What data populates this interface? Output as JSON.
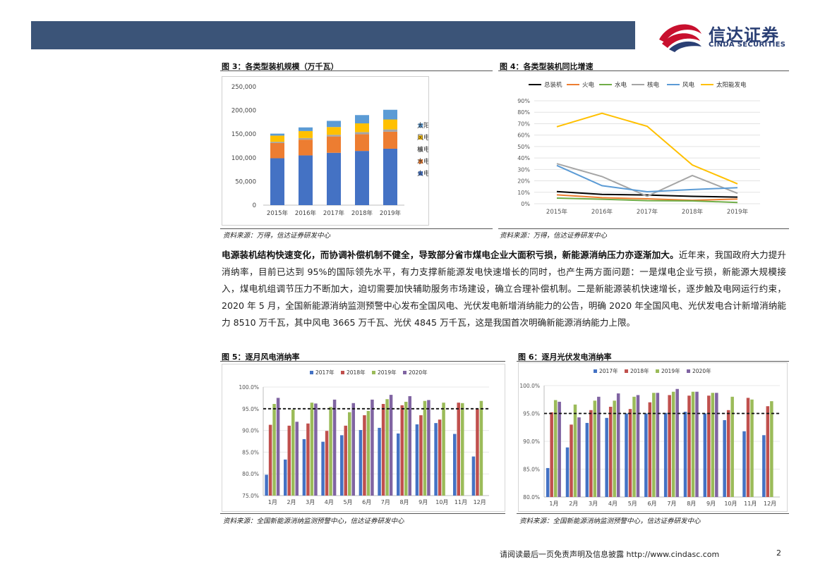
{
  "header": {
    "logo_cn": "信达证券",
    "logo_en": "CINDA SECURITIES",
    "colors": {
      "band": "#3b5478",
      "logo_red": "#c8102e",
      "logo_blue": "#2a3f74"
    }
  },
  "fig3": {
    "title": "图 3：各类型装机规模（万千瓦）",
    "source": "资料来源：万得，信达证券研发中心"
  },
  "fig4": {
    "title": "图 4：各类型装机同比增速",
    "source": "资料来源：万得，信达证券研发中心"
  },
  "fig5": {
    "title": "图 5：逐月风电消纳率",
    "source": "资料来源：全国新能源消纳监测预警中心，信达证券研发中心"
  },
  "fig6": {
    "title": "图 6：逐月光伏发电消纳率",
    "source": "资料来源：全国新能源消纳监测预警中心，信达证券研发中心"
  },
  "body": {
    "bold_lead": "电源装机结构快速变化，而协调补偿机制不健全，导致部分省市煤电企业大面积亏损，新能源消纳压力亦逐渐加大。",
    "rest": "近年来，我国政府大力提升消纳率，目前已达到 95%的国际领先水平，有力支撑新能源发电快速增长的同时，也产生两方面问题：一是煤电企业亏损，新能源大规模接入，煤电机组调节压力不断加大，迫切需要加快辅助服务市场建设，确立合理补偿机制。二是新能源装机快速增长，逐步触及电网运行约束，2020 年 5 月，全国新能源消纳监测预警中心发布全国风电、光伏发电新增消纳能力的公告，明确 2020 年全国风电、光伏发电合计新增消纳能力 8510 万千瓦，其中风电 3665 万千瓦、光伏 4845 万千瓦，这是我国首次明确新能源消纳能力上限。"
  },
  "footer": {
    "text": "请阅读最后一页免责声明及信息披露 http://www.cindasc.com",
    "page": "2"
  },
  "chart_data": [
    {
      "id": "fig3",
      "type": "bar",
      "stacked": true,
      "categories": [
        "2015年",
        "2016年",
        "2017年",
        "2018年",
        "2019年"
      ],
      "series": [
        {
          "name": "火电",
          "color": "#4472c4",
          "values": [
            99000,
            105000,
            110500,
            114400,
            119100
          ]
        },
        {
          "name": "水电",
          "color": "#ed7d31",
          "values": [
            31950,
            33200,
            34400,
            35300,
            35800
          ]
        },
        {
          "name": "核电",
          "color": "#a5a5a5",
          "values": [
            2700,
            3400,
            3600,
            4500,
            4900
          ]
        },
        {
          "name": "风电",
          "color": "#ffc000",
          "values": [
            13100,
            14800,
            16400,
            18400,
            21000
          ]
        },
        {
          "name": "太阳能发电",
          "color": "#5b9bd5",
          "values": [
            4200,
            7700,
            13000,
            17500,
            20500
          ]
        }
      ],
      "yticks": [
        "250,000",
        "200,000",
        "150,000",
        "100,000",
        "50,000",
        "0"
      ],
      "ylim": [
        0,
        250000
      ],
      "legend": "right",
      "legend_order": [
        "太阳能发电",
        "风电",
        "核电",
        "水电",
        "火电"
      ]
    },
    {
      "id": "fig4",
      "type": "line",
      "categories": [
        "2015年",
        "2016年",
        "2017年",
        "2018年",
        "2019年"
      ],
      "series": [
        {
          "name": "总装机",
          "color": "#000000",
          "values": [
            10.6,
            8.2,
            7.6,
            6.5,
            5.8
          ]
        },
        {
          "name": "火电",
          "color": "#ed7d31",
          "values": [
            7.8,
            5.3,
            4.3,
            3.0,
            4.1
          ]
        },
        {
          "name": "水电",
          "color": "#70ad47",
          "values": [
            4.9,
            3.9,
            2.7,
            2.5,
            1.1
          ]
        },
        {
          "name": "核电",
          "color": "#a5a5a5",
          "values": [
            35.0,
            23.8,
            6.5,
            24.7,
            9.1
          ]
        },
        {
          "name": "风电",
          "color": "#5b9bd5",
          "values": [
            33.5,
            15.8,
            10.5,
            12.4,
            14.0
          ]
        },
        {
          "name": "太阳能发电",
          "color": "#ffc000",
          "values": [
            67.3,
            79.1,
            67.7,
            33.9,
            17.4
          ]
        }
      ],
      "yticks": [
        "90%",
        "80%",
        "70%",
        "60%",
        "50%",
        "40%",
        "30%",
        "20%",
        "10%",
        "0%"
      ],
      "ylim": [
        0,
        90
      ],
      "legend": "top"
    },
    {
      "id": "fig5",
      "type": "bar",
      "categories": [
        "1月",
        "2月",
        "3月",
        "4月",
        "5月",
        "6月",
        "7月",
        "8月",
        "9月",
        "10月",
        "11月",
        "12月"
      ],
      "series": [
        {
          "name": "2017年",
          "color": "#4472c4",
          "values": [
            79.8,
            83.3,
            88.0,
            87.4,
            88.9,
            90.1,
            90.6,
            89.3,
            91.4,
            91.7,
            89.2,
            84.0
          ]
        },
        {
          "name": "2018年",
          "color": "#c0504d",
          "values": [
            91.3,
            91.1,
            91.6,
            89.9,
            91.1,
            93.5,
            96.1,
            95.8,
            93.5,
            92.5,
            96.4,
            94.9
          ]
        },
        {
          "name": "2019年",
          "color": "#9bbb59",
          "values": [
            96.1,
            94.8,
            96.4,
            95.4,
            94.2,
            94.5,
            97.2,
            96.6,
            96.8,
            96.4,
            96.3,
            96.8
          ]
        },
        {
          "name": "2020年",
          "color": "#8064a2",
          "values": [
            97.5,
            92.0,
            96.2,
            97.1,
            96.3,
            97.1,
            98.2,
            97.9,
            97.0,
            null,
            null,
            null
          ]
        }
      ],
      "reference_line": 95,
      "yticks": [
        "100.0%",
        "95.0%",
        "90.0%",
        "85.0%",
        "80.0%",
        "75.0%"
      ],
      "ylim": [
        75,
        100
      ],
      "legend": "top"
    },
    {
      "id": "fig6",
      "type": "bar",
      "categories": [
        "1月",
        "2月",
        "3月",
        "4月",
        "5月",
        "6月",
        "7月",
        "8月",
        "9月",
        "10月",
        "11月",
        "12月"
      ],
      "series": [
        {
          "name": "2017年",
          "color": "#4472c4",
          "values": [
            85.2,
            88.9,
            93.3,
            94.2,
            95.0,
            95.0,
            95.1,
            95.3,
            95.0,
            93.8,
            91.8,
            91.1
          ]
        },
        {
          "name": "2018年",
          "color": "#c0504d",
          "values": [
            95.2,
            93.0,
            95.6,
            96.2,
            95.8,
            97.0,
            98.3,
            98.2,
            98.2,
            95.6,
            97.8,
            96.3
          ]
        },
        {
          "name": "2019年",
          "color": "#9bbb59",
          "values": [
            97.4,
            96.6,
            97.3,
            97.3,
            98.0,
            98.7,
            98.9,
            98.9,
            98.7,
            98.0,
            97.5,
            97.2
          ]
        },
        {
          "name": "2020年",
          "color": "#8064a2",
          "values": [
            97.1,
            94.3,
            98.0,
            98.6,
            98.3,
            98.7,
            99.4,
            98.9,
            98.7,
            null,
            null,
            null
          ]
        }
      ],
      "reference_line": 95,
      "yticks": [
        "100.0%",
        "95.0%",
        "90.0%",
        "85.0%",
        "80.0%"
      ],
      "ylim": [
        80,
        100
      ],
      "legend": "top"
    }
  ]
}
